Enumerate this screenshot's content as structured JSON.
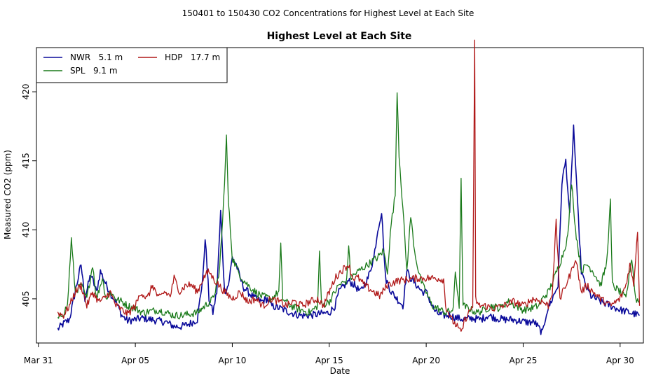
{
  "chart_data": {
    "type": "line",
    "suptitle": "150401  to  150430 CO2 Concentrations for Highest Level at Each Site",
    "title": "Highest Level at Each Site",
    "xlabel": "Date",
    "ylabel": "Measured CO2 (ppm)",
    "xlim": [
      -0.1,
      31.2
    ],
    "ylim": [
      401.8,
      423.2
    ],
    "x_ticks": [
      {
        "pos": 0,
        "label": "Mar 31"
      },
      {
        "pos": 5,
        "label": "Apr 05"
      },
      {
        "pos": 10,
        "label": "Apr 10"
      },
      {
        "pos": 15,
        "label": "Apr 15"
      },
      {
        "pos": 20,
        "label": "Apr 20"
      },
      {
        "pos": 25,
        "label": "Apr 25"
      },
      {
        "pos": 30,
        "label": "Apr 30"
      }
    ],
    "y_ticks": [
      {
        "pos": 405,
        "label": "405"
      },
      {
        "pos": 410,
        "label": "410"
      },
      {
        "pos": 415,
        "label": "415"
      },
      {
        "pos": 420,
        "label": "420"
      }
    ],
    "legend_position": "top-left",
    "series": [
      {
        "name": "NWR   5.1 m",
        "color": "#0a0a9a",
        "points": [
          [
            1.0,
            402.8
          ],
          [
            1.3,
            403.2
          ],
          [
            1.6,
            403.5
          ],
          [
            1.9,
            405.5
          ],
          [
            2.2,
            407.5
          ],
          [
            2.4,
            405.0
          ],
          [
            2.7,
            406.8
          ],
          [
            3.0,
            405.5
          ],
          [
            3.2,
            407.0
          ],
          [
            3.5,
            406.0
          ],
          [
            3.8,
            405.2
          ],
          [
            4.0,
            404.8
          ],
          [
            4.3,
            403.8
          ],
          [
            4.6,
            403.4
          ],
          [
            5.0,
            403.5
          ],
          [
            5.4,
            403.6
          ],
          [
            5.8,
            403.5
          ],
          [
            6.2,
            403.4
          ],
          [
            6.6,
            403.3
          ],
          [
            7.0,
            403.0
          ],
          [
            7.4,
            403.0
          ],
          [
            7.8,
            403.2
          ],
          [
            8.2,
            403.5
          ],
          [
            8.5,
            406.8
          ],
          [
            8.6,
            409.5
          ],
          [
            8.8,
            405.0
          ],
          [
            9.0,
            404.0
          ],
          [
            9.2,
            405.5
          ],
          [
            9.4,
            411.3
          ],
          [
            9.6,
            405.5
          ],
          [
            9.8,
            406.0
          ],
          [
            10.0,
            408.0
          ],
          [
            10.2,
            407.5
          ],
          [
            10.4,
            406.5
          ],
          [
            10.6,
            405.8
          ],
          [
            10.8,
            405.5
          ],
          [
            11.2,
            405.0
          ],
          [
            11.5,
            404.8
          ],
          [
            11.8,
            405.0
          ],
          [
            12.0,
            404.5
          ],
          [
            12.5,
            404.3
          ],
          [
            13.0,
            404.0
          ],
          [
            13.5,
            403.8
          ],
          [
            14.0,
            403.8
          ],
          [
            14.5,
            403.9
          ],
          [
            15.0,
            404.0
          ],
          [
            15.3,
            404.5
          ],
          [
            15.5,
            405.5
          ],
          [
            15.8,
            406.0
          ],
          [
            16.0,
            406.3
          ],
          [
            16.3,
            406.0
          ],
          [
            16.6,
            405.5
          ],
          [
            17.0,
            406.5
          ],
          [
            17.3,
            408.0
          ],
          [
            17.5,
            410.0
          ],
          [
            17.7,
            411.3
          ],
          [
            17.9,
            406.5
          ],
          [
            18.2,
            405.5
          ],
          [
            18.5,
            405.0
          ],
          [
            18.8,
            404.5
          ],
          [
            19.0,
            407.0
          ],
          [
            19.2,
            406.5
          ],
          [
            19.5,
            406.0
          ],
          [
            19.8,
            405.5
          ],
          [
            20.0,
            405.5
          ],
          [
            20.3,
            404.5
          ],
          [
            20.5,
            404.0
          ],
          [
            20.8,
            403.8
          ],
          [
            21.2,
            403.8
          ],
          [
            21.6,
            403.6
          ],
          [
            22.0,
            403.5
          ],
          [
            22.4,
            403.6
          ],
          [
            22.8,
            403.5
          ],
          [
            23.2,
            403.8
          ],
          [
            23.6,
            403.6
          ],
          [
            24.0,
            403.5
          ],
          [
            24.4,
            403.5
          ],
          [
            24.8,
            403.4
          ],
          [
            25.2,
            403.3
          ],
          [
            25.6,
            403.3
          ],
          [
            26.0,
            402.5
          ],
          [
            26.2,
            404.0
          ],
          [
            26.5,
            405.0
          ],
          [
            26.8,
            406.0
          ],
          [
            27.0,
            413.5
          ],
          [
            27.2,
            415.0
          ],
          [
            27.4,
            411.0
          ],
          [
            27.6,
            417.5
          ],
          [
            27.8,
            412.0
          ],
          [
            28.0,
            407.0
          ],
          [
            28.2,
            406.0
          ],
          [
            28.5,
            405.2
          ],
          [
            29.0,
            404.8
          ],
          [
            29.5,
            404.5
          ],
          [
            30.0,
            404.2
          ],
          [
            30.5,
            404.0
          ],
          [
            31.0,
            403.8
          ]
        ]
      },
      {
        "name": "SPL   9.1 m",
        "color": "#1a7a1a",
        "points": [
          [
            1.0,
            403.5
          ],
          [
            1.3,
            404.0
          ],
          [
            1.5,
            404.5
          ],
          [
            1.7,
            409.3
          ],
          [
            1.9,
            405.5
          ],
          [
            2.2,
            406.0
          ],
          [
            2.5,
            405.0
          ],
          [
            2.8,
            407.5
          ],
          [
            3.0,
            405.0
          ],
          [
            3.3,
            406.5
          ],
          [
            3.5,
            405.0
          ],
          [
            3.7,
            405.5
          ],
          [
            4.0,
            405.0
          ],
          [
            4.3,
            404.8
          ],
          [
            4.6,
            404.5
          ],
          [
            5.0,
            404.3
          ],
          [
            5.4,
            404.0
          ],
          [
            5.8,
            404.1
          ],
          [
            6.2,
            404.2
          ],
          [
            6.6,
            404.0
          ],
          [
            7.0,
            403.8
          ],
          [
            7.4,
            403.8
          ],
          [
            7.8,
            403.9
          ],
          [
            8.2,
            404.0
          ],
          [
            8.6,
            404.5
          ],
          [
            9.0,
            405.0
          ],
          [
            9.3,
            406.5
          ],
          [
            9.5,
            410.5
          ],
          [
            9.7,
            416.7
          ],
          [
            9.8,
            412.0
          ],
          [
            10.0,
            408.0
          ],
          [
            10.3,
            407.0
          ],
          [
            10.5,
            406.5
          ],
          [
            10.8,
            406.0
          ],
          [
            11.2,
            405.5
          ],
          [
            11.5,
            405.2
          ],
          [
            12.0,
            405.0
          ],
          [
            12.4,
            405.5
          ],
          [
            12.5,
            408.8
          ],
          [
            12.6,
            405.0
          ],
          [
            13.0,
            404.5
          ],
          [
            13.5,
            404.2
          ],
          [
            14.0,
            404.0
          ],
          [
            14.4,
            404.5
          ],
          [
            14.5,
            408.5
          ],
          [
            14.6,
            404.5
          ],
          [
            15.0,
            404.8
          ],
          [
            15.5,
            406.0
          ],
          [
            15.9,
            406.3
          ],
          [
            16.0,
            409.0
          ],
          [
            16.1,
            406.5
          ],
          [
            16.5,
            407.0
          ],
          [
            17.0,
            407.5
          ],
          [
            17.5,
            408.0
          ],
          [
            17.8,
            408.5
          ],
          [
            18.0,
            407.0
          ],
          [
            18.2,
            410.5
          ],
          [
            18.4,
            412.5
          ],
          [
            18.5,
            420.2
          ],
          [
            18.6,
            415.5
          ],
          [
            18.8,
            411.5
          ],
          [
            19.0,
            407.0
          ],
          [
            19.2,
            411.0
          ],
          [
            19.4,
            408.5
          ],
          [
            19.6,
            407.0
          ],
          [
            19.8,
            406.0
          ],
          [
            20.0,
            405.5
          ],
          [
            20.3,
            404.5
          ],
          [
            20.6,
            404.3
          ],
          [
            21.0,
            404.0
          ],
          [
            21.4,
            404.2
          ],
          [
            21.5,
            407.0
          ],
          [
            21.7,
            404.5
          ],
          [
            21.8,
            413.5
          ],
          [
            21.9,
            404.5
          ],
          [
            22.2,
            404.3
          ],
          [
            22.6,
            404.0
          ],
          [
            23.0,
            404.2
          ],
          [
            23.4,
            404.5
          ],
          [
            23.8,
            404.3
          ],
          [
            24.2,
            404.8
          ],
          [
            24.6,
            404.5
          ],
          [
            25.0,
            404.2
          ],
          [
            25.4,
            404.3
          ],
          [
            25.8,
            404.5
          ],
          [
            26.0,
            405.0
          ],
          [
            26.3,
            405.5
          ],
          [
            26.6,
            406.5
          ],
          [
            27.0,
            408.0
          ],
          [
            27.3,
            409.5
          ],
          [
            27.5,
            413.5
          ],
          [
            27.7,
            410.0
          ],
          [
            28.0,
            407.0
          ],
          [
            28.3,
            407.5
          ],
          [
            28.6,
            407.0
          ],
          [
            29.0,
            406.0
          ],
          [
            29.3,
            407.5
          ],
          [
            29.5,
            412.0
          ],
          [
            29.6,
            406.0
          ],
          [
            30.0,
            405.5
          ],
          [
            30.3,
            405.0
          ],
          [
            30.6,
            408.0
          ],
          [
            30.8,
            405.0
          ],
          [
            31.0,
            404.8
          ]
        ]
      },
      {
        "name": "HDP   17.7 m",
        "color": "#b01818",
        "points": [
          [
            1.0,
            404.0
          ],
          [
            1.3,
            403.8
          ],
          [
            1.6,
            404.5
          ],
          [
            1.9,
            405.5
          ],
          [
            2.2,
            406.0
          ],
          [
            2.5,
            404.5
          ],
          [
            2.8,
            405.5
          ],
          [
            3.1,
            404.8
          ],
          [
            3.4,
            405.0
          ],
          [
            3.7,
            405.5
          ],
          [
            4.0,
            404.5
          ],
          [
            4.3,
            404.2
          ],
          [
            4.6,
            403.9
          ],
          [
            5.0,
            404.5
          ],
          [
            5.3,
            405.5
          ],
          [
            5.6,
            405.0
          ],
          [
            5.9,
            406.0
          ],
          [
            6.2,
            405.0
          ],
          [
            6.5,
            405.5
          ],
          [
            6.8,
            405.2
          ],
          [
            7.0,
            406.5
          ],
          [
            7.3,
            405.5
          ],
          [
            7.6,
            406.0
          ],
          [
            7.9,
            406.0
          ],
          [
            8.2,
            405.5
          ],
          [
            8.5,
            406.5
          ],
          [
            8.8,
            407.0
          ],
          [
            9.0,
            406.5
          ],
          [
            9.3,
            406.0
          ],
          [
            9.6,
            405.5
          ],
          [
            10.0,
            405.0
          ],
          [
            10.4,
            405.5
          ],
          [
            10.8,
            404.8
          ],
          [
            11.2,
            405.0
          ],
          [
            11.6,
            404.5
          ],
          [
            12.0,
            405.0
          ],
          [
            12.4,
            404.8
          ],
          [
            12.8,
            404.5
          ],
          [
            13.2,
            404.8
          ],
          [
            13.6,
            404.5
          ],
          [
            14.0,
            404.8
          ],
          [
            14.4,
            405.0
          ],
          [
            14.7,
            404.5
          ],
          [
            15.0,
            405.5
          ],
          [
            15.3,
            406.5
          ],
          [
            15.6,
            407.0
          ],
          [
            16.0,
            407.5
          ],
          [
            16.2,
            406.5
          ],
          [
            16.5,
            406.5
          ],
          [
            16.8,
            406.0
          ],
          [
            17.0,
            405.8
          ],
          [
            17.3,
            405.5
          ],
          [
            17.6,
            405.2
          ],
          [
            18.0,
            406.0
          ],
          [
            18.5,
            406.3
          ],
          [
            19.0,
            406.4
          ],
          [
            19.5,
            406.5
          ],
          [
            20.0,
            406.5
          ],
          [
            20.5,
            406.5
          ],
          [
            20.9,
            406.4
          ],
          [
            21.0,
            404.5
          ],
          [
            21.3,
            403.5
          ],
          [
            21.6,
            403.0
          ],
          [
            21.8,
            402.5
          ],
          [
            22.0,
            403.5
          ],
          [
            22.2,
            404.0
          ],
          [
            22.4,
            404.5
          ],
          [
            22.5,
            423.5
          ],
          [
            22.55,
            405.0
          ],
          [
            22.7,
            404.5
          ],
          [
            23.0,
            404.5
          ],
          [
            23.5,
            404.3
          ],
          [
            24.0,
            404.5
          ],
          [
            24.5,
            404.8
          ],
          [
            25.0,
            404.5
          ],
          [
            25.5,
            405.0
          ],
          [
            26.0,
            404.8
          ],
          [
            26.3,
            404.5
          ],
          [
            26.5,
            405.5
          ],
          [
            26.7,
            410.5
          ],
          [
            26.9,
            405.0
          ],
          [
            27.2,
            406.0
          ],
          [
            27.5,
            407.0
          ],
          [
            27.7,
            408.0
          ],
          [
            28.0,
            405.5
          ],
          [
            28.3,
            406.0
          ],
          [
            28.6,
            405.5
          ],
          [
            29.0,
            405.0
          ],
          [
            29.5,
            404.5
          ],
          [
            30.0,
            405.0
          ],
          [
            30.3,
            406.0
          ],
          [
            30.5,
            407.5
          ],
          [
            30.7,
            406.0
          ],
          [
            30.9,
            410.0
          ],
          [
            31.0,
            404.5
          ]
        ]
      }
    ]
  }
}
